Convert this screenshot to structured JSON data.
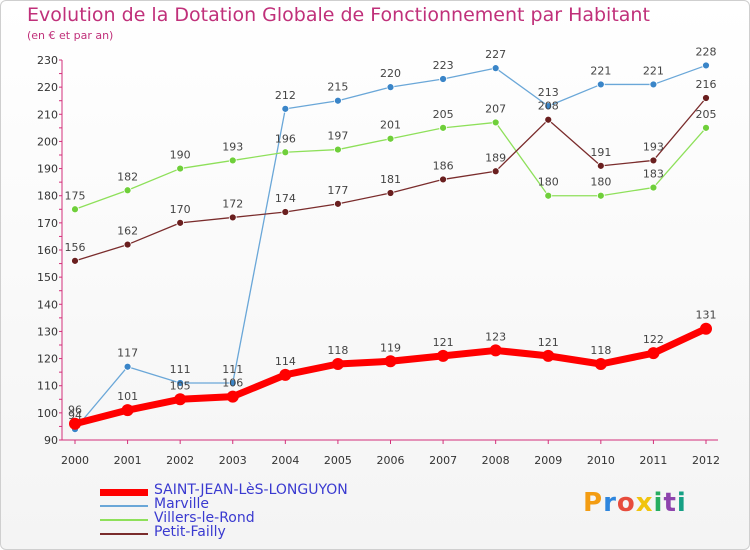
{
  "header": {
    "title": "Evolution de la Dotation Globale de Fonctionnement par Habitant",
    "subtitle": "(en € et par an)"
  },
  "logo": {
    "letters": [
      "P",
      "r",
      "o",
      "x",
      "i",
      "t",
      "i"
    ],
    "colors": [
      "#f39c12",
      "#2e86de",
      "#e74c3c",
      "#f1c40f",
      "#27ae60",
      "#8e44ad",
      "#16a085"
    ]
  },
  "chart_data": {
    "type": "line",
    "title": "Evolution de la Dotation Globale de Fonctionnement par Habitant",
    "subtitle": "(en € et par an)",
    "xlabel": "",
    "ylabel": "",
    "ylim": [
      90,
      230
    ],
    "yticks": [
      90,
      100,
      110,
      120,
      130,
      140,
      150,
      160,
      170,
      180,
      190,
      200,
      210,
      220,
      230
    ],
    "categories": [
      "2000",
      "2001",
      "2002",
      "2003",
      "2004",
      "2005",
      "2006",
      "2007",
      "2008",
      "2009",
      "2010",
      "2011",
      "2012"
    ],
    "grid": false,
    "legend_position": "bottom-left",
    "series": [
      {
        "name": "Marville",
        "color": "#6aa7d8",
        "marker": "#3a85c8",
        "values": [
          94,
          117,
          111,
          111,
          212,
          215,
          220,
          223,
          227,
          213,
          221,
          221,
          228
        ],
        "labels": [
          "94",
          "117",
          "111",
          "111",
          "212",
          "215",
          "220",
          "223",
          "227",
          "213",
          "221",
          "221",
          "228"
        ]
      },
      {
        "name": "Villers-le-Rond",
        "color": "#8ee05a",
        "marker": "#6fcf3a",
        "values": [
          175,
          182,
          190,
          193,
          196,
          197,
          201,
          205,
          207,
          180,
          180,
          183,
          205
        ],
        "labels": [
          "175",
          "182",
          "190",
          "193",
          "196",
          "197",
          "201",
          "205",
          "207",
          "180",
          "180",
          "183",
          "205"
        ]
      },
      {
        "name": "Petit-Failly",
        "color": "#7a2c2c",
        "marker": "#6a1f1f",
        "values": [
          156,
          162,
          170,
          172,
          174,
          177,
          181,
          186,
          189,
          208,
          191,
          193,
          216
        ],
        "labels": [
          "156",
          "162",
          "170",
          "172",
          "174",
          "177",
          "181",
          "186",
          "189",
          "208",
          "191",
          "193",
          "216"
        ]
      },
      {
        "name": "SAINT-JEAN-LèS-LONGUYON",
        "color": "#ff0000",
        "marker": "#ff0000",
        "values": [
          96,
          101,
          105,
          106,
          114,
          118,
          119,
          121,
          123,
          121,
          118,
          122,
          131
        ],
        "labels": [
          "96",
          "101",
          "105",
          "106",
          "114",
          "118",
          "119",
          "121",
          "123",
          "121",
          "118",
          "122",
          "131"
        ]
      }
    ],
    "legend": [
      {
        "name": "SAINT-JEAN-LèS-LONGUYON",
        "color": "#ff0000",
        "thick": true
      },
      {
        "name": "Marville",
        "color": "#6aa7d8",
        "thick": false
      },
      {
        "name": "Villers-le-Rond",
        "color": "#8ee05a",
        "thick": false
      },
      {
        "name": "Petit-Failly",
        "color": "#7a2c2c",
        "thick": false
      }
    ]
  }
}
